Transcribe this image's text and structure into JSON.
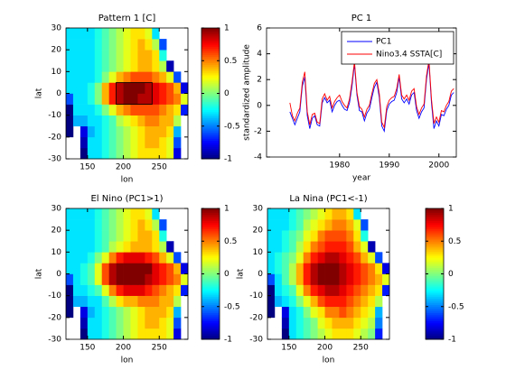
{
  "chart_data": [
    {
      "type": "heatmap",
      "title": "Pattern 1 [C]",
      "xlabel": "lon",
      "ylabel": "lat",
      "colormap": "jet",
      "x": [
        125,
        135,
        145,
        155,
        165,
        175,
        185,
        195,
        205,
        215,
        225,
        235,
        245,
        255,
        265,
        275,
        285
      ],
      "y": [
        -27.5,
        -22.5,
        -17.5,
        -12.5,
        -7.5,
        -2.5,
        2.5,
        7.5,
        12.5,
        17.5,
        22.5,
        27.5
      ],
      "z": [
        [
          null,
          null,
          -1,
          -0.3,
          -0.3,
          -0.2,
          -0.1,
          0,
          0.1,
          0.2,
          0.3,
          0.3,
          0.3,
          0.3,
          0.2,
          -0.8,
          null
        ],
        [
          null,
          null,
          -0.9,
          -0.3,
          -0.3,
          -0.2,
          -0.1,
          0,
          0.1,
          0.2,
          0.3,
          0.4,
          0.4,
          0.3,
          0.2,
          -0.6,
          null
        ],
        [
          -1,
          null,
          -0.8,
          -0.4,
          -0.3,
          -0.2,
          -0.1,
          0,
          0.1,
          0.2,
          0.3,
          0.4,
          0.4,
          0.4,
          0.3,
          -0.4,
          null
        ],
        [
          -1,
          -0.4,
          -0.4,
          -0.3,
          -0.3,
          -0.2,
          -0.1,
          0.1,
          0.2,
          0.3,
          0.4,
          0.5,
          0.5,
          0.4,
          0.4,
          0.1,
          null
        ],
        [
          -1,
          -0.3,
          -0.3,
          -0.3,
          -0.2,
          0,
          0.2,
          0.4,
          0.5,
          0.6,
          0.6,
          0.6,
          0.6,
          0.5,
          0.4,
          0.3,
          -0.7
        ],
        [
          -0.6,
          -0.3,
          -0.3,
          -0.2,
          0,
          0.4,
          0.7,
          0.9,
          1,
          1,
          0.9,
          0.9,
          0.8,
          0.7,
          0.6,
          0.5,
          0.2
        ],
        [
          -0.3,
          -0.3,
          -0.3,
          -0.2,
          0,
          0.4,
          0.7,
          0.9,
          1,
          1,
          1,
          0.9,
          0.8,
          0.7,
          0.6,
          0.4,
          -0.8
        ],
        [
          -0.3,
          -0.3,
          -0.3,
          -0.3,
          -0.2,
          0,
          0.2,
          0.4,
          0.5,
          0.6,
          0.6,
          0.6,
          0.5,
          0.4,
          0.2,
          -0.6,
          null
        ],
        [
          -0.3,
          -0.3,
          -0.3,
          -0.3,
          -0.2,
          -0.1,
          0,
          0.1,
          0.2,
          0.3,
          0.4,
          0.4,
          0.3,
          0.1,
          -0.9,
          null,
          null
        ],
        [
          -0.3,
          -0.3,
          -0.3,
          -0.3,
          -0.2,
          -0.1,
          0,
          0.1,
          0.2,
          0.3,
          0.4,
          0.4,
          0.3,
          -0.2,
          null,
          null,
          null
        ],
        [
          -0.3,
          -0.3,
          -0.3,
          -0.3,
          -0.2,
          -0.1,
          0,
          0.1,
          0.2,
          0.3,
          0.4,
          0.3,
          0.1,
          -0.6,
          null,
          null,
          null
        ],
        [
          -0.3,
          -0.3,
          -0.3,
          -0.3,
          -0.2,
          -0.1,
          0,
          0.1,
          0.2,
          0.3,
          0.3,
          0.2,
          -0.3,
          null,
          null,
          null,
          null
        ]
      ],
      "region": {
        "xlim": [
          190,
          240
        ],
        "ylim": [
          -5,
          5
        ]
      },
      "xlim": [
        120,
        290
      ],
      "ylim": [
        -30,
        30
      ],
      "xticks": [
        150,
        200,
        250
      ],
      "yticks": [
        -30,
        -20,
        -10,
        0,
        10,
        20,
        30
      ],
      "clim": [
        -1,
        1
      ],
      "cticks": [
        -1,
        -0.5,
        0,
        0.5,
        1
      ]
    },
    {
      "type": "line",
      "title": "PC 1",
      "xlabel": "year",
      "ylabel": "standardized amplitude",
      "x": [
        1970,
        1970.5,
        1971,
        1971.5,
        1972,
        1972.5,
        1973,
        1973.5,
        1974,
        1974.5,
        1975,
        1975.5,
        1976,
        1976.5,
        1977,
        1977.5,
        1978,
        1978.5,
        1979,
        1979.5,
        1980,
        1980.5,
        1981,
        1981.5,
        1982,
        1982.5,
        1983,
        1983.5,
        1984,
        1984.5,
        1985,
        1985.5,
        1986,
        1986.5,
        1987,
        1987.5,
        1988,
        1988.5,
        1989,
        1989.5,
        1990,
        1990.5,
        1991,
        1991.5,
        1992,
        1992.5,
        1993,
        1993.5,
        1994,
        1994.5,
        1995,
        1995.5,
        1996,
        1996.5,
        1997,
        1997.5,
        1998,
        1998.5,
        1999,
        1999.5,
        2000,
        2000.5,
        2001,
        2001.5,
        2002,
        2002.5,
        2003
      ],
      "series": [
        {
          "name": "PC1",
          "color": "#0000ff",
          "values": [
            -0.5,
            -1.0,
            -1.5,
            -1.0,
            -0.5,
            1.5,
            2.2,
            -0.8,
            -1.8,
            -1.0,
            -0.8,
            -1.5,
            -1.6,
            0.2,
            0.6,
            0.2,
            0.4,
            -0.5,
            0,
            0.3,
            0.4,
            0,
            -0.3,
            -0.4,
            0.2,
            1.5,
            3.2,
            0.8,
            -0.4,
            -0.5,
            -1.2,
            -0.6,
            -0.3,
            0.6,
            1.4,
            1.8,
            0.6,
            -1.6,
            -2.0,
            -0.4,
            0.1,
            0.3,
            0.4,
            1.0,
            2.2,
            0.5,
            0.2,
            0.5,
            0.1,
            0.8,
            1.0,
            -0.4,
            -1.0,
            -0.5,
            -0.2,
            2.0,
            3.3,
            0.2,
            -1.8,
            -1.2,
            -1.6,
            -0.7,
            -0.8,
            -0.3,
            0,
            0.8,
            1.0
          ]
        },
        {
          "name": "Nino3.4 SSTA[C]",
          "color": "#ff0000",
          "values": [
            0.2,
            -0.8,
            -1.2,
            -0.6,
            -0.2,
            1.8,
            2.6,
            -0.5,
            -1.5,
            -0.7,
            -0.6,
            -1.3,
            -1.4,
            0.5,
            0.9,
            0.4,
            0.7,
            -0.2,
            0.3,
            0.6,
            0.8,
            0.3,
            0,
            -0.2,
            0.5,
            1.8,
            3.4,
            1.0,
            -0.1,
            -0.3,
            -0.9,
            -0.3,
            0,
            0.9,
            1.7,
            2.0,
            0.9,
            -1.3,
            -1.7,
            -0.1,
            0.4,
            0.6,
            0.7,
            1.3,
            2.4,
            0.8,
            0.5,
            0.8,
            0.4,
            1.1,
            1.3,
            -0.1,
            -0.7,
            -0.2,
            0.1,
            2.3,
            3.5,
            0.5,
            -1.4,
            -0.9,
            -1.3,
            -0.4,
            -0.5,
            0,
            0.3,
            1.1,
            1.3
          ]
        }
      ],
      "xlim": [
        1965.3,
        2003.5
      ],
      "ylim": [
        -4,
        6
      ],
      "xticks": [
        1980,
        1990,
        2000
      ],
      "yticks": [
        -4,
        -2,
        0,
        2,
        4,
        6
      ],
      "legend": "top-right"
    },
    {
      "type": "heatmap",
      "title": "El Nino (PC1>1)",
      "xlabel": "lon",
      "ylabel": "lat",
      "colormap": "jet",
      "x": [
        125,
        135,
        145,
        155,
        165,
        175,
        185,
        195,
        205,
        215,
        225,
        235,
        245,
        255,
        265,
        275,
        285
      ],
      "y": [
        -27.5,
        -22.5,
        -17.5,
        -12.5,
        -7.5,
        -2.5,
        2.5,
        7.5,
        12.5,
        17.5,
        22.5,
        27.5
      ],
      "z": [
        [
          null,
          null,
          -1,
          -0.3,
          -0.3,
          -0.2,
          -0.1,
          0,
          0.1,
          0.2,
          0.3,
          0.3,
          0.3,
          0.3,
          0.2,
          -0.8,
          null
        ],
        [
          null,
          null,
          -0.9,
          -0.3,
          -0.3,
          -0.2,
          -0.1,
          0,
          0.1,
          0.2,
          0.3,
          0.4,
          0.4,
          0.3,
          0.2,
          -0.6,
          null
        ],
        [
          -1,
          null,
          -0.8,
          -0.4,
          -0.3,
          -0.2,
          -0.1,
          0,
          0.1,
          0.2,
          0.3,
          0.4,
          0.4,
          0.4,
          0.3,
          -0.4,
          null
        ],
        [
          -1,
          -0.4,
          -0.4,
          -0.3,
          -0.3,
          -0.1,
          0.1,
          0.3,
          0.4,
          0.4,
          0.5,
          0.5,
          0.5,
          0.4,
          0.4,
          0.1,
          null
        ],
        [
          -1,
          -0.3,
          -0.3,
          -0.2,
          -0.1,
          0.2,
          0.5,
          0.7,
          0.8,
          0.8,
          0.8,
          0.7,
          0.6,
          0.5,
          0.4,
          0.3,
          -0.7
        ],
        [
          -0.6,
          -0.3,
          -0.2,
          -0.1,
          0.2,
          0.6,
          0.9,
          1,
          1,
          1,
          1,
          0.9,
          0.8,
          0.7,
          0.6,
          0.5,
          0.2
        ],
        [
          -0.3,
          -0.3,
          -0.2,
          -0.1,
          0.2,
          0.6,
          0.9,
          1,
          1,
          1,
          1,
          1,
          0.8,
          0.7,
          0.6,
          0.4,
          -0.8
        ],
        [
          -0.3,
          -0.3,
          -0.3,
          -0.2,
          0,
          0.2,
          0.5,
          0.7,
          0.8,
          0.8,
          0.8,
          0.7,
          0.6,
          0.4,
          0.2,
          -0.6,
          null
        ],
        [
          -0.3,
          -0.3,
          -0.3,
          -0.3,
          -0.2,
          -0.1,
          0.1,
          0.2,
          0.3,
          0.4,
          0.4,
          0.4,
          0.3,
          0.1,
          -0.9,
          null,
          null
        ],
        [
          -0.3,
          -0.3,
          -0.3,
          -0.3,
          -0.2,
          -0.1,
          0,
          0.1,
          0.2,
          0.3,
          0.4,
          0.4,
          0.3,
          -0.2,
          null,
          null,
          null
        ],
        [
          -0.3,
          -0.3,
          -0.3,
          -0.3,
          -0.2,
          -0.1,
          0,
          0.1,
          0.2,
          0.3,
          0.4,
          0.3,
          0.1,
          -0.6,
          null,
          null,
          null
        ],
        [
          -0.3,
          -0.3,
          -0.3,
          -0.3,
          -0.2,
          -0.1,
          0,
          0.1,
          0.2,
          0.3,
          0.3,
          0.2,
          -0.3,
          null,
          null,
          null,
          null
        ]
      ],
      "xlim": [
        120,
        290
      ],
      "ylim": [
        -30,
        30
      ],
      "xticks": [
        150,
        200,
        250
      ],
      "yticks": [
        -30,
        -20,
        -10,
        0,
        10,
        20,
        30
      ],
      "clim": [
        -1,
        1
      ],
      "cticks": [
        -1,
        -0.5,
        0,
        0.5,
        1
      ]
    },
    {
      "type": "heatmap",
      "title": "La Nina (PC1<-1)",
      "xlabel": "lon",
      "ylabel": "lat",
      "colormap": "jet",
      "x": [
        125,
        135,
        145,
        155,
        165,
        175,
        185,
        195,
        205,
        215,
        225,
        235,
        245,
        255,
        265,
        275,
        285
      ],
      "y": [
        -27.5,
        -22.5,
        -17.5,
        -12.5,
        -7.5,
        -2.5,
        2.5,
        7.5,
        12.5,
        17.5,
        22.5,
        27.5
      ],
      "z": [
        [
          null,
          null,
          -1,
          -0.3,
          -0.2,
          -0.1,
          0,
          0.1,
          0.2,
          0.3,
          0.3,
          0.3,
          0.2,
          0.1,
          0,
          -0.7,
          null
        ],
        [
          null,
          null,
          -0.9,
          -0.3,
          -0.2,
          -0.1,
          0,
          0.2,
          0.3,
          0.4,
          0.4,
          0.4,
          0.3,
          0.2,
          0.1,
          -0.5,
          null
        ],
        [
          -1,
          null,
          -0.8,
          -0.3,
          -0.2,
          0,
          0.2,
          0.3,
          0.5,
          0.5,
          0.6,
          0.5,
          0.4,
          0.3,
          0.2,
          -0.4,
          null
        ],
        [
          -1,
          -0.4,
          -0.3,
          -0.2,
          0,
          0.2,
          0.4,
          0.6,
          0.7,
          0.7,
          0.7,
          0.6,
          0.5,
          0.4,
          0.3,
          0.1,
          null
        ],
        [
          -1,
          -0.3,
          -0.2,
          -0.1,
          0.2,
          0.5,
          0.7,
          0.8,
          0.9,
          0.9,
          0.8,
          0.7,
          0.6,
          0.5,
          0.4,
          0.3,
          -0.7
        ],
        [
          -0.6,
          -0.3,
          -0.1,
          0.1,
          0.4,
          0.7,
          0.9,
          1,
          1,
          1,
          0.9,
          0.8,
          0.7,
          0.6,
          0.5,
          0.4,
          0.2
        ],
        [
          -0.3,
          -0.2,
          -0.1,
          0.1,
          0.4,
          0.7,
          0.9,
          1,
          1,
          1,
          0.9,
          0.8,
          0.7,
          0.6,
          0.5,
          0.3,
          -0.8
        ],
        [
          -0.3,
          -0.2,
          -0.1,
          0,
          0.2,
          0.5,
          0.7,
          0.8,
          0.9,
          0.9,
          0.8,
          0.7,
          0.6,
          0.4,
          0.2,
          -0.6,
          null
        ],
        [
          -0.3,
          -0.3,
          -0.2,
          -0.1,
          0.1,
          0.3,
          0.5,
          0.6,
          0.7,
          0.7,
          0.7,
          0.6,
          0.4,
          0.2,
          -0.9,
          null,
          null
        ],
        [
          -0.3,
          -0.3,
          -0.2,
          -0.1,
          0,
          0.2,
          0.3,
          0.5,
          0.6,
          0.6,
          0.6,
          0.5,
          0.3,
          -0.2,
          null,
          null,
          null
        ],
        [
          -0.3,
          -0.3,
          -0.3,
          -0.2,
          -0.1,
          0.1,
          0.2,
          0.3,
          0.4,
          0.5,
          0.5,
          0.4,
          0.2,
          -0.6,
          null,
          null,
          null
        ],
        [
          -0.3,
          -0.3,
          -0.3,
          -0.2,
          -0.1,
          0,
          0.1,
          0.2,
          0.3,
          0.4,
          0.4,
          0.3,
          -0.3,
          null,
          null,
          null,
          null
        ]
      ],
      "xlim": [
        120,
        290
      ],
      "ylim": [
        -30,
        30
      ],
      "xticks": [
        150,
        200,
        250
      ],
      "yticks": [
        -30,
        -20,
        -10,
        0,
        10,
        20,
        30
      ],
      "clim": [
        -1,
        1
      ],
      "cticks": [
        -1,
        -0.5,
        0,
        0.5,
        1
      ]
    }
  ]
}
